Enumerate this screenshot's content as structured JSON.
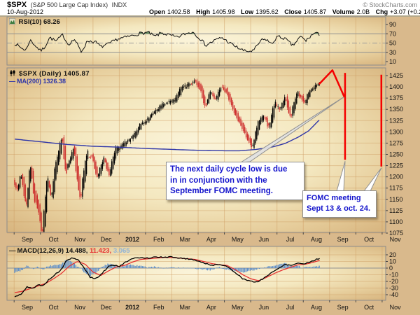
{
  "header": {
    "symbol": "$SPX",
    "name": "(S&P 500 Large Cap Index)",
    "exchange": "INDX",
    "date": "10-Aug-2012",
    "copyright": "© StockCharts.com",
    "quote": {
      "open_label": "Open",
      "open": "1402.58",
      "high_label": "High",
      "high": "1405.98",
      "low_label": "Low",
      "low": "1395.62",
      "close_label": "Close",
      "close": "1405.87",
      "volume_label": "Volume",
      "volume": "2.0B",
      "chg_label": "Chg",
      "chg": "+3.07 (+0.22%)",
      "up_arrow": "▲"
    }
  },
  "annotations": {
    "bubble1": {
      "lines": [
        "The next daily cycle low is due",
        "in in conjunction with the",
        "September FOMC meeting."
      ]
    },
    "bubble2": {
      "lines": [
        "FOMC meeting",
        "Sept 13 & oct. 24."
      ]
    }
  },
  "colors": {
    "bg_tan": "#d9b98c",
    "bg_cream": "#fbf4da",
    "grid": "#cf9e63",
    "panel_border": "#8c8c8c",
    "candle_up": "#000000",
    "candle_down": "#cc2a2a",
    "ma_blue": "#2f36a8",
    "rsi_fill_green": "#4e7d4e",
    "macd_hist_blue": "#5b8cc8",
    "macd_signal_red": "#e63232",
    "annotation_red": "#f40000",
    "annotation_text_blue": "#1414cc",
    "level_gray": "#8f8f8f",
    "chg_green": "#0a8f0a"
  },
  "chart_data": {
    "x_axis": {
      "unit": "months from 2011-09-01",
      "labels": [
        {
          "label": "Sep",
          "m": 0.5
        },
        {
          "label": "Oct",
          "m": 1.5
        },
        {
          "label": "Nov",
          "m": 2.5
        },
        {
          "label": "Dec",
          "m": 3.5
        },
        {
          "label": "2012",
          "m": 4.5,
          "bold": true
        },
        {
          "label": "Feb",
          "m": 5.5
        },
        {
          "label": "Mar",
          "m": 6.5
        },
        {
          "label": "Apr",
          "m": 7.5
        },
        {
          "label": "May",
          "m": 8.5
        },
        {
          "label": "Jun",
          "m": 9.5
        },
        {
          "label": "Jul",
          "m": 10.5
        },
        {
          "label": "Aug",
          "m": 11.5
        },
        {
          "label": "Sep",
          "m": 12.5
        },
        {
          "label": "Oct",
          "m": 13.5
        },
        {
          "label": "Nov",
          "m": 14.5
        }
      ]
    },
    "panels": [
      {
        "id": "rsi",
        "type": "line",
        "legend": "RSI(10) 68.26",
        "value": 68.26,
        "yticks": [
          90,
          70,
          50,
          30,
          10
        ],
        "levels": {
          "overbought": 70,
          "mid": 50,
          "oversold": 30
        },
        "points": [
          [
            0,
            50
          ],
          [
            0.2,
            42
          ],
          [
            0.45,
            34
          ],
          [
            0.6,
            57
          ],
          [
            0.8,
            45
          ],
          [
            1.0,
            33
          ],
          [
            1.15,
            40
          ],
          [
            1.35,
            62
          ],
          [
            1.6,
            54
          ],
          [
            1.85,
            68
          ],
          [
            2.05,
            47
          ],
          [
            2.3,
            58
          ],
          [
            2.55,
            31
          ],
          [
            2.8,
            55
          ],
          [
            3.1,
            52
          ],
          [
            3.3,
            42
          ],
          [
            3.6,
            48
          ],
          [
            3.9,
            58
          ],
          [
            4.2,
            62
          ],
          [
            4.5,
            66
          ],
          [
            4.8,
            71
          ],
          [
            5.1,
            73
          ],
          [
            5.35,
            64
          ],
          [
            5.6,
            72
          ],
          [
            5.9,
            67
          ],
          [
            6.2,
            62
          ],
          [
            6.5,
            70
          ],
          [
            6.8,
            74
          ],
          [
            7.1,
            58
          ],
          [
            7.3,
            45
          ],
          [
            7.6,
            55
          ],
          [
            7.9,
            62
          ],
          [
            8.2,
            50
          ],
          [
            8.5,
            40
          ],
          [
            8.8,
            32
          ],
          [
            9.1,
            33
          ],
          [
            9.4,
            56
          ],
          [
            9.6,
            58
          ],
          [
            9.8,
            47
          ],
          [
            10.0,
            64
          ],
          [
            10.3,
            60
          ],
          [
            10.6,
            44
          ],
          [
            10.9,
            64
          ],
          [
            11.1,
            55
          ],
          [
            11.3,
            66
          ],
          [
            11.45,
            72
          ],
          [
            11.6,
            68.26
          ]
        ]
      },
      {
        "id": "price",
        "type": "candlestick",
        "legend": "$SPX (Daily) 1405.87",
        "last_close": 1405.87,
        "legend_ma": "MA(200) 1326.38",
        "ma200_value": 1326.38,
        "ylim": [
          1075,
          1425
        ],
        "yticks": [
          1425,
          1400,
          1375,
          1350,
          1325,
          1300,
          1275,
          1250,
          1225,
          1200,
          1175,
          1150,
          1125,
          1100,
          1075
        ],
        "close_path": [
          [
            0,
            1190
          ],
          [
            0.15,
            1172
          ],
          [
            0.3,
            1204
          ],
          [
            0.5,
            1140
          ],
          [
            0.65,
            1218
          ],
          [
            0.8,
            1160
          ],
          [
            0.95,
            1130
          ],
          [
            1.1,
            1077
          ],
          [
            1.3,
            1190
          ],
          [
            1.45,
            1158
          ],
          [
            1.62,
            1225
          ],
          [
            1.85,
            1284
          ],
          [
            2.0,
            1218
          ],
          [
            2.3,
            1258
          ],
          [
            2.55,
            1158
          ],
          [
            2.8,
            1246
          ],
          [
            3.0,
            1244
          ],
          [
            3.2,
            1202
          ],
          [
            3.45,
            1240
          ],
          [
            3.65,
            1206
          ],
          [
            3.9,
            1258
          ],
          [
            4.1,
            1266
          ],
          [
            4.35,
            1280
          ],
          [
            4.6,
            1292
          ],
          [
            4.85,
            1316
          ],
          [
            5.1,
            1327
          ],
          [
            5.35,
            1342
          ],
          [
            5.65,
            1358
          ],
          [
            5.9,
            1366
          ],
          [
            6.15,
            1372
          ],
          [
            6.4,
            1396
          ],
          [
            6.65,
            1404
          ],
          [
            6.9,
            1412
          ],
          [
            7.1,
            1398
          ],
          [
            7.3,
            1360
          ],
          [
            7.5,
            1386
          ],
          [
            7.7,
            1372
          ],
          [
            7.9,
            1398
          ],
          [
            8.1,
            1390
          ],
          [
            8.35,
            1354
          ],
          [
            8.6,
            1324
          ],
          [
            8.85,
            1294
          ],
          [
            9.1,
            1268
          ],
          [
            9.35,
            1322
          ],
          [
            9.55,
            1334
          ],
          [
            9.72,
            1312
          ],
          [
            9.95,
            1360
          ],
          [
            10.15,
            1352
          ],
          [
            10.35,
            1374
          ],
          [
            10.55,
            1336
          ],
          [
            10.8,
            1384
          ],
          [
            10.95,
            1376
          ],
          [
            11.1,
            1366
          ],
          [
            11.3,
            1392
          ],
          [
            11.6,
            1406
          ]
        ],
        "ma200_path": [
          [
            0,
            1284
          ],
          [
            1,
            1278
          ],
          [
            2,
            1272
          ],
          [
            3,
            1268
          ],
          [
            4,
            1266
          ],
          [
            5,
            1263
          ],
          [
            6,
            1261
          ],
          [
            7,
            1259
          ],
          [
            8,
            1258
          ],
          [
            8.6,
            1258
          ],
          [
            9.2,
            1261
          ],
          [
            9.8,
            1266
          ],
          [
            10.3,
            1274
          ],
          [
            10.8,
            1288
          ],
          [
            11.2,
            1302
          ],
          [
            11.6,
            1326
          ]
        ],
        "overlay": {
          "projection_line": [
            [
              11.6,
              1406
            ],
            [
              12.11,
              1437
            ],
            [
              12.56,
              1378
            ]
          ],
          "event_vlines": [
            {
              "m": 12.59,
              "from": 1238,
              "to": 1431
            },
            {
              "m": 13.97,
              "from": 1223,
              "to": 1427
            }
          ]
        }
      },
      {
        "id": "macd",
        "type": "line+histogram",
        "legend_black": "MACD(12,26,9) 14.488,",
        "legend_red": "11.423,",
        "legend_blue": "3.065",
        "values": [
          14.488,
          11.423,
          3.065
        ],
        "yticks": [
          20,
          10,
          0,
          -10,
          -20,
          -30,
          -40
        ],
        "macd_path": [
          [
            0,
            -44
          ],
          [
            0.3,
            -38
          ],
          [
            0.5,
            -28
          ],
          [
            0.7,
            -31
          ],
          [
            0.9,
            -25
          ],
          [
            1.1,
            -27
          ],
          [
            1.3,
            -18
          ],
          [
            1.55,
            -10
          ],
          [
            1.8,
            -2
          ],
          [
            2.0,
            12
          ],
          [
            2.2,
            15
          ],
          [
            2.45,
            12
          ],
          [
            2.7,
            -2
          ],
          [
            2.9,
            -14
          ],
          [
            3.1,
            -16
          ],
          [
            3.3,
            -10
          ],
          [
            3.6,
            3
          ],
          [
            3.8,
            5
          ],
          [
            4.0,
            2
          ],
          [
            4.2,
            8
          ],
          [
            4.5,
            14
          ],
          [
            4.8,
            16
          ],
          [
            5.1,
            15
          ],
          [
            5.4,
            17
          ],
          [
            5.7,
            16
          ],
          [
            6.0,
            17
          ],
          [
            6.3,
            15
          ],
          [
            6.6,
            14
          ],
          [
            6.9,
            12
          ],
          [
            7.2,
            8
          ],
          [
            7.5,
            4
          ],
          [
            7.8,
            6
          ],
          [
            8.1,
            2
          ],
          [
            8.4,
            -6
          ],
          [
            8.7,
            -16
          ],
          [
            9.0,
            -20
          ],
          [
            9.25,
            -21
          ],
          [
            9.5,
            -15
          ],
          [
            9.75,
            -8
          ],
          [
            10.0,
            -2
          ],
          [
            10.3,
            6
          ],
          [
            10.55,
            4
          ],
          [
            10.8,
            8
          ],
          [
            11.0,
            6
          ],
          [
            11.3,
            10
          ],
          [
            11.6,
            14.49
          ]
        ],
        "signal_path": [
          [
            0,
            -37
          ],
          [
            0.3,
            -35
          ],
          [
            0.6,
            -31
          ],
          [
            0.9,
            -27
          ],
          [
            1.2,
            -23
          ],
          [
            1.5,
            -16
          ],
          [
            1.8,
            -8
          ],
          [
            2.1,
            3
          ],
          [
            2.4,
            10
          ],
          [
            2.7,
            6
          ],
          [
            3.0,
            -6
          ],
          [
            3.3,
            -11
          ],
          [
            3.6,
            -4
          ],
          [
            3.9,
            2
          ],
          [
            4.2,
            4
          ],
          [
            4.5,
            9
          ],
          [
            4.8,
            13
          ],
          [
            5.1,
            14
          ],
          [
            5.4,
            15
          ],
          [
            5.7,
            16
          ],
          [
            6.0,
            16
          ],
          [
            6.3,
            15
          ],
          [
            6.6,
            14
          ],
          [
            6.9,
            13
          ],
          [
            7.2,
            10
          ],
          [
            7.5,
            7
          ],
          [
            7.8,
            5
          ],
          [
            8.1,
            4
          ],
          [
            8.4,
            -2
          ],
          [
            8.7,
            -10
          ],
          [
            9.0,
            -16
          ],
          [
            9.3,
            -19
          ],
          [
            9.6,
            -14
          ],
          [
            9.9,
            -8
          ],
          [
            10.2,
            -3
          ],
          [
            10.5,
            1
          ],
          [
            10.8,
            5
          ],
          [
            11.1,
            6
          ],
          [
            11.4,
            9
          ],
          [
            11.6,
            11.42
          ]
        ]
      }
    ]
  }
}
